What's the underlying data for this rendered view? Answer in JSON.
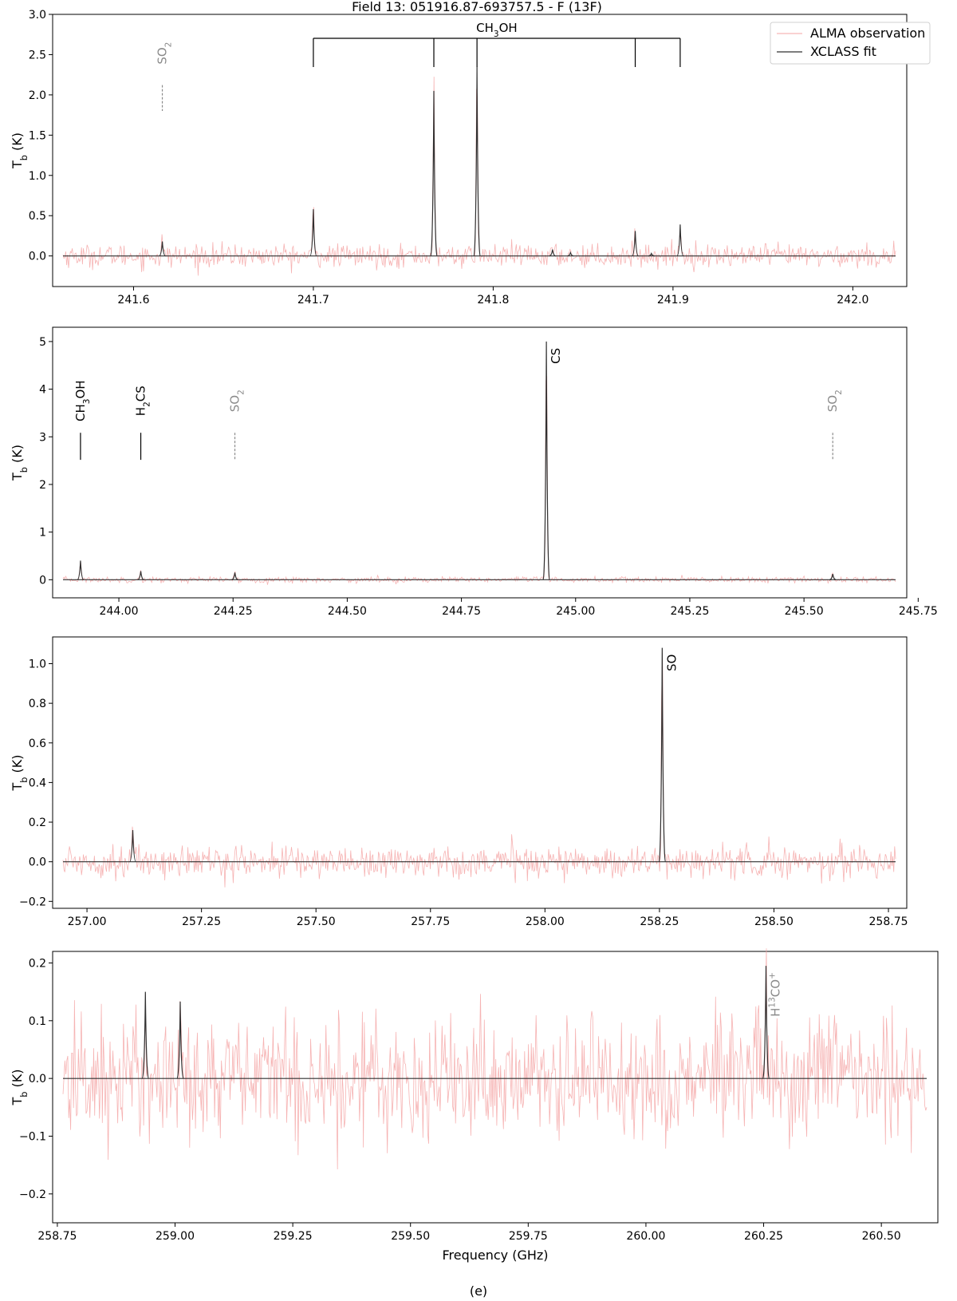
{
  "figure": {
    "title": "Field 13: 051916.87-693757.5 - F (13F)",
    "caption": "(e)"
  },
  "legend": {
    "observation": "ALMA observation",
    "fit": "XCLASS fit"
  },
  "colors": {
    "observation": "#f4a6a6",
    "fit": "#303030",
    "label_primary": "#000000",
    "label_secondary": "#8a8a8a",
    "frame": "#000000"
  },
  "chart_data": [
    {
      "type": "line",
      "panel": 1,
      "title": "Field 13: 051916.87-693757.5 - F (13F)",
      "xlabel": "",
      "ylabel": "Tb (K)",
      "xlim": [
        241.555,
        242.03
      ],
      "ylim": [
        -0.38,
        3.0
      ],
      "xticks": [
        241.6,
        241.7,
        241.8,
        241.9,
        242.0
      ],
      "xtick_labels": [
        "241.6",
        "241.7",
        "241.8",
        "241.9",
        "242.0"
      ],
      "yticks": [
        0.0,
        0.5,
        1.0,
        1.5,
        2.0,
        2.5,
        3.0
      ],
      "ytick_labels": [
        "0.0",
        "0.5",
        "1.0",
        "1.5",
        "2.0",
        "2.5",
        "3.0"
      ],
      "legend": "top-right",
      "noise_rms": 0.07,
      "peaks": [
        {
          "x": 241.616,
          "y": 0.18
        },
        {
          "x": 241.7,
          "y": 0.58
        },
        {
          "x": 241.767,
          "y": 2.05
        },
        {
          "x": 241.791,
          "y": 2.35
        },
        {
          "x": 241.833,
          "y": 0.08
        },
        {
          "x": 241.843,
          "y": 0.04
        },
        {
          "x": 241.879,
          "y": 0.31
        },
        {
          "x": 241.888,
          "y": 0.03
        },
        {
          "x": 241.904,
          "y": 0.39
        }
      ],
      "labels": [
        {
          "text": "SO₂",
          "x": 241.616,
          "kind": "secondary"
        }
      ],
      "bracket": {
        "text": "CH₃OH",
        "xs": [
          241.7,
          241.767,
          241.791,
          241.879,
          241.904
        ]
      }
    },
    {
      "type": "line",
      "panel": 2,
      "xlabel": "",
      "ylabel": "Tb (K)",
      "xlim": [
        243.855,
        245.725
      ],
      "ylim": [
        -0.38,
        5.3
      ],
      "xticks": [
        244.0,
        244.25,
        244.5,
        244.75,
        245.0,
        245.25,
        245.5,
        245.75
      ],
      "xtick_labels": [
        "244.00",
        "244.25",
        "244.50",
        "244.75",
        "245.00",
        "245.25",
        "245.50",
        "245.75"
      ],
      "yticks": [
        0,
        1,
        2,
        3,
        4,
        5
      ],
      "ytick_labels": [
        "0",
        "1",
        "2",
        "3",
        "4",
        "5"
      ],
      "noise_rms": 0.03,
      "peaks": [
        {
          "x": 243.916,
          "y": 0.4
        },
        {
          "x": 244.048,
          "y": 0.18
        },
        {
          "x": 244.254,
          "y": 0.15
        },
        {
          "x": 244.936,
          "y": 5.0
        },
        {
          "x": 245.563,
          "y": 0.12
        }
      ],
      "labels": [
        {
          "text": "CH₃OH",
          "x": 243.916,
          "kind": "primary"
        },
        {
          "text": "H₂CS",
          "x": 244.048,
          "kind": "primary"
        },
        {
          "text": "SO₂",
          "x": 244.254,
          "kind": "secondary"
        },
        {
          "text": "CS",
          "x": 244.936,
          "kind": "primary",
          "beside": true
        },
        {
          "text": "SO₂",
          "x": 245.563,
          "kind": "secondary"
        }
      ]
    },
    {
      "type": "line",
      "panel": 3,
      "xlabel": "",
      "ylabel": "Tb (K)",
      "xlim": [
        256.925,
        258.79
      ],
      "ylim": [
        -0.235,
        1.135
      ],
      "xticks": [
        257.0,
        257.25,
        257.5,
        257.75,
        258.0,
        258.25,
        258.5,
        258.75
      ],
      "xtick_labels": [
        "257.00",
        "257.25",
        "257.50",
        "257.75",
        "258.00",
        "258.25",
        "258.50",
        "258.75"
      ],
      "yticks": [
        -0.2,
        0.0,
        0.2,
        0.4,
        0.6,
        0.8,
        1.0
      ],
      "ytick_labels": [
        "−0.2",
        "0.0",
        "0.2",
        "0.4",
        "0.6",
        "0.8",
        "1.0"
      ],
      "noise_rms": 0.04,
      "peaks": [
        {
          "x": 257.1,
          "y": 0.16
        },
        {
          "x": 258.256,
          "y": 1.08
        }
      ],
      "labels": [
        {
          "text": "SO",
          "x": 258.256,
          "kind": "primary",
          "beside": true
        }
      ]
    },
    {
      "type": "line",
      "panel": 4,
      "xlabel": "Frequency (GHz)",
      "ylabel": "Tb (K)",
      "xlim": [
        258.74,
        260.62
      ],
      "ylim": [
        -0.25,
        0.22
      ],
      "xticks": [
        258.75,
        259.0,
        259.25,
        259.5,
        259.75,
        260.0,
        260.25,
        260.5
      ],
      "xtick_labels": [
        "258.75",
        "259.00",
        "259.25",
        "259.50",
        "259.75",
        "260.00",
        "260.25",
        "260.50"
      ],
      "yticks": [
        -0.2,
        -0.1,
        0.0,
        0.1,
        0.2
      ],
      "ytick_labels": [
        "−0.2",
        "−0.1",
        "0.0",
        "0.1",
        "0.2"
      ],
      "noise_rms": 0.055,
      "peaks": [
        {
          "x": 258.937,
          "y": 0.15
        },
        {
          "x": 259.011,
          "y": 0.133
        },
        {
          "x": 260.255,
          "y": 0.195
        }
      ],
      "labels": [
        {
          "text": "H¹³CO⁺",
          "x": 260.255,
          "kind": "secondary",
          "beside": true
        }
      ]
    }
  ]
}
